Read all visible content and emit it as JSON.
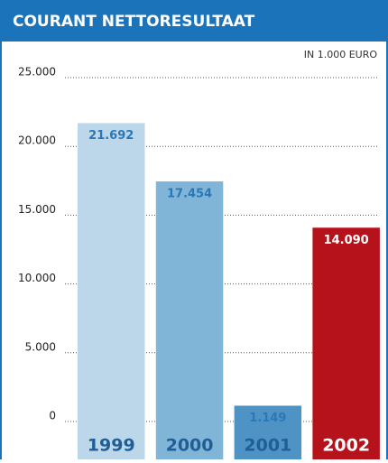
{
  "chart_data": {
    "type": "bar",
    "title": "COURANT NETTORESULTAAT",
    "subtitle": "IN 1.000 EURO",
    "categories": [
      "1999",
      "2000",
      "2001",
      "2002"
    ],
    "values": [
      21692,
      17454,
      1149,
      14090
    ],
    "value_labels": [
      "21.692",
      "17.454",
      "1.149",
      "14.090"
    ],
    "colors": [
      "#bcd6ea",
      "#80b5d7",
      "#4e93c4",
      "#b5121b"
    ],
    "ylim": [
      0,
      25000
    ],
    "yticks": [
      0,
      {
        "value": 5000,
        "label": "5.000"
      },
      {
        "value": 10000,
        "label": "10.000"
      },
      {
        "value": 15000,
        "label": "15.000"
      },
      {
        "value": 20000,
        "label": "20.000"
      },
      {
        "value": 25000,
        "label": "25.000"
      }
    ],
    "grid": true
  }
}
